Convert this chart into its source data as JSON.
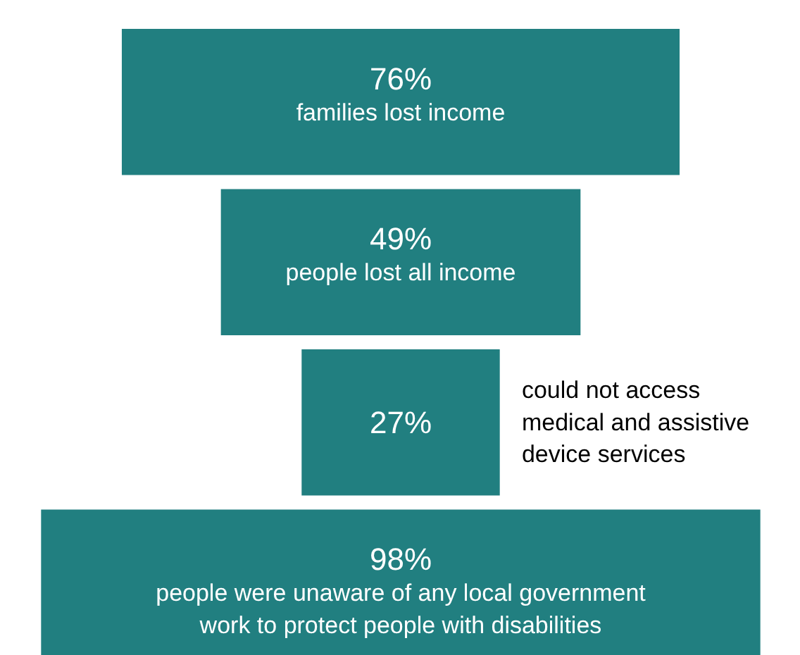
{
  "chart_data": {
    "type": "other",
    "categories": [
      "families lost income",
      "people lost all income",
      "could not access medical and assistive device services",
      "people were unaware of any local government work to protect people with disabilities"
    ],
    "values": [
      76,
      49,
      27,
      98
    ],
    "value_labels": [
      "76%",
      "49%",
      "27%",
      "98%"
    ],
    "color": "#217f80"
  }
}
